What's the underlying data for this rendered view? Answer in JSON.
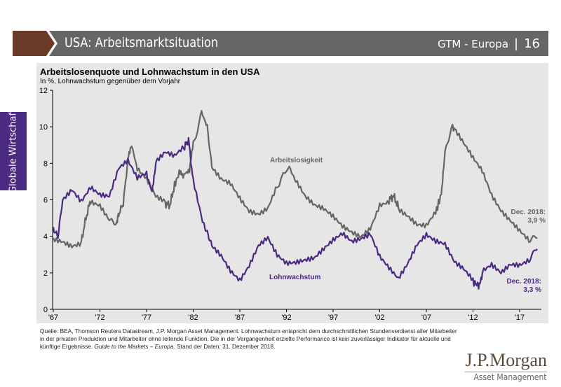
{
  "header": {
    "title": "USA: Arbeitsmarktsituation",
    "series_name": "GTM - Europa",
    "separator": "|",
    "page": "16",
    "accent": "#6b3a26"
  },
  "sidebar": {
    "label": "Globale Wirtschaft",
    "color": "#4b2a82"
  },
  "source": "Quelle: BEA, Thomson Reuters Datastream, J.P. Morgan Asset Management. Lohnwachstum entspricht dem durchschnittlichen Stundenverdienst aller Mitarbeiter in der privaten Produktion und Mitarbeiter ohne leitende Funktion. Die in der Vergangenheit erzielte Performance ist kein zuverlässiger Indikator für aktuelle und künftige Ergebnisse. ",
  "source_italic": "Guide to the Markets – Europa.",
  "source_end": " Stand der Daten: 31. Dezember 2018.",
  "logo": {
    "name": "J.P.Morgan",
    "sub": "Asset Management"
  },
  "chart_data": {
    "type": "line",
    "title": "Arbeitslosenquote und Lohnwachstum in den USA",
    "subtitle": "In %, Lohnwachstum gegenüber dem Vorjahr",
    "ylim": [
      0,
      12
    ],
    "yticks": [
      0,
      2,
      4,
      6,
      8,
      10,
      12
    ],
    "xlim": [
      1967,
      2019
    ],
    "xticks": [
      "'67",
      "'72",
      "'77",
      "'82",
      "'87",
      "'92",
      "'97",
      "'02",
      "'07",
      "'12",
      "'17"
    ],
    "grid": false,
    "series": [
      {
        "name": "Arbeitslosigkeit",
        "color": "#666666",
        "x": [
          1967,
          1968,
          1969,
          1970,
          1970.5,
          1971,
          1972,
          1973,
          1973.8,
          1974,
          1974.5,
          1975,
          1975.4,
          1976,
          1977,
          1978,
          1979,
          1979.5,
          1980,
          1980.6,
          1981,
          1981.6,
          1982,
          1982.9,
          1983.5,
          1984,
          1985,
          1986,
          1987,
          1988,
          1989,
          1990,
          1991,
          1992.3,
          1993,
          1994,
          1995,
          1996,
          1997,
          1998,
          1999,
          2000,
          2001,
          2002,
          2003,
          2003.5,
          2004,
          2005,
          2006,
          2007,
          2008,
          2008.6,
          2009,
          2009.8,
          2010,
          2011,
          2012,
          2013,
          2014,
          2015,
          2016,
          2017,
          2018,
          2018.9
        ],
        "y": [
          3.8,
          3.7,
          3.5,
          3.7,
          5.0,
          6.0,
          5.8,
          5.0,
          4.8,
          5.2,
          5.8,
          8.2,
          9.0,
          7.7,
          7.1,
          6.1,
          5.8,
          5.7,
          6.8,
          7.6,
          7.4,
          7.6,
          9.0,
          10.8,
          10.0,
          7.8,
          7.2,
          7.0,
          6.2,
          5.5,
          5.3,
          5.6,
          6.8,
          7.8,
          7.0,
          6.1,
          5.6,
          5.4,
          5.0,
          4.5,
          4.2,
          4.0,
          4.5,
          5.8,
          6.0,
          6.2,
          5.6,
          5.2,
          4.7,
          4.6,
          5.3,
          6.3,
          8.5,
          10.0,
          9.8,
          9.0,
          8.2,
          7.5,
          6.2,
          5.4,
          4.9,
          4.4,
          3.9,
          3.9
        ]
      },
      {
        "name": "Lohnwachstum",
        "color": "#4b2a82",
        "x": [
          1967,
          1967.5,
          1968,
          1969,
          1970,
          1971,
          1972,
          1973,
          1974,
          1975,
          1976,
          1977,
          1977.6,
          1978,
          1979,
          1980,
          1981,
          1981.5,
          1982,
          1983,
          1983.5,
          1984,
          1985,
          1986,
          1987,
          1988,
          1989,
          1990,
          1991,
          1992,
          1993,
          1994,
          1995,
          1996,
          1997,
          1998,
          1999,
          2000,
          2001,
          2002,
          2003,
          2004,
          2005,
          2006,
          2007,
          2008,
          2009,
          2010,
          2011,
          2012,
          2012.6,
          2013,
          2014,
          2015,
          2016,
          2017,
          2018,
          2018.9
        ],
        "y": [
          4.4,
          4.0,
          6.0,
          6.6,
          6.0,
          6.8,
          6.4,
          6.3,
          7.8,
          8.2,
          7.2,
          7.4,
          6.4,
          8.0,
          8.5,
          8.3,
          8.8,
          9.3,
          7.0,
          4.8,
          4.2,
          3.5,
          3.0,
          2.2,
          1.7,
          2.5,
          3.6,
          4.0,
          3.0,
          2.5,
          2.5,
          2.6,
          2.7,
          3.2,
          3.7,
          4.1,
          3.7,
          3.9,
          4.2,
          3.0,
          2.4,
          1.8,
          2.6,
          3.6,
          4.1,
          3.7,
          3.5,
          2.5,
          2.1,
          1.5,
          1.3,
          2.0,
          2.4,
          2.0,
          2.5,
          2.5,
          2.8,
          3.3
        ]
      }
    ],
    "annotations": [
      {
        "series": "Arbeitslosigkeit",
        "text": "Arbeitslosigkeit"
      },
      {
        "series": "Lohnwachstum",
        "text": "Lohnwachstum"
      },
      {
        "line1": "Dec. 2018:",
        "line2": "3,9 %",
        "color": "#666666"
      },
      {
        "line1": "Dec. 2018:",
        "line2": "3,3 %",
        "color": "#4b2a82"
      }
    ]
  }
}
